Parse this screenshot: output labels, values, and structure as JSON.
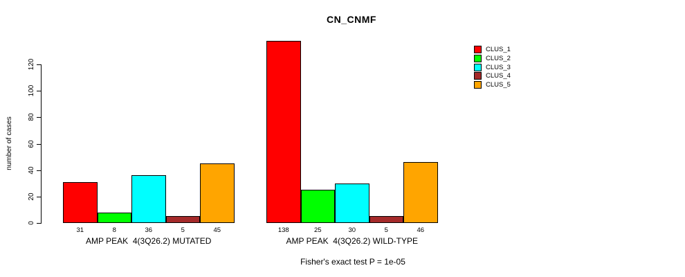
{
  "title": "CN_CNMF",
  "chart_data": {
    "type": "bar",
    "title": "CN_CNMF",
    "ylabel": "number of cases",
    "xlabel": "",
    "ylim": [
      0,
      120
    ],
    "yticks": [
      0,
      20,
      40,
      60,
      80,
      100,
      120
    ],
    "grid": false,
    "legend_position": "right",
    "categories": [
      "AMP PEAK  4(3Q26.2) MUTATED",
      "AMP PEAK  4(3Q26.2) WILD-TYPE"
    ],
    "series": [
      {
        "name": "CLUS_1",
        "color": "#FF0000",
        "values": [
          31,
          138
        ]
      },
      {
        "name": "CLUS_2",
        "color": "#00FF00",
        "values": [
          8,
          25
        ]
      },
      {
        "name": "CLUS_3",
        "color": "#00FFFF",
        "values": [
          36,
          30
        ]
      },
      {
        "name": "CLUS_4",
        "color": "#A52A2A",
        "values": [
          5,
          5
        ]
      },
      {
        "name": "CLUS_5",
        "color": "#FFA500",
        "values": [
          45,
          46
        ]
      }
    ],
    "footnote": "Fisher's exact test P = 1e-05"
  }
}
